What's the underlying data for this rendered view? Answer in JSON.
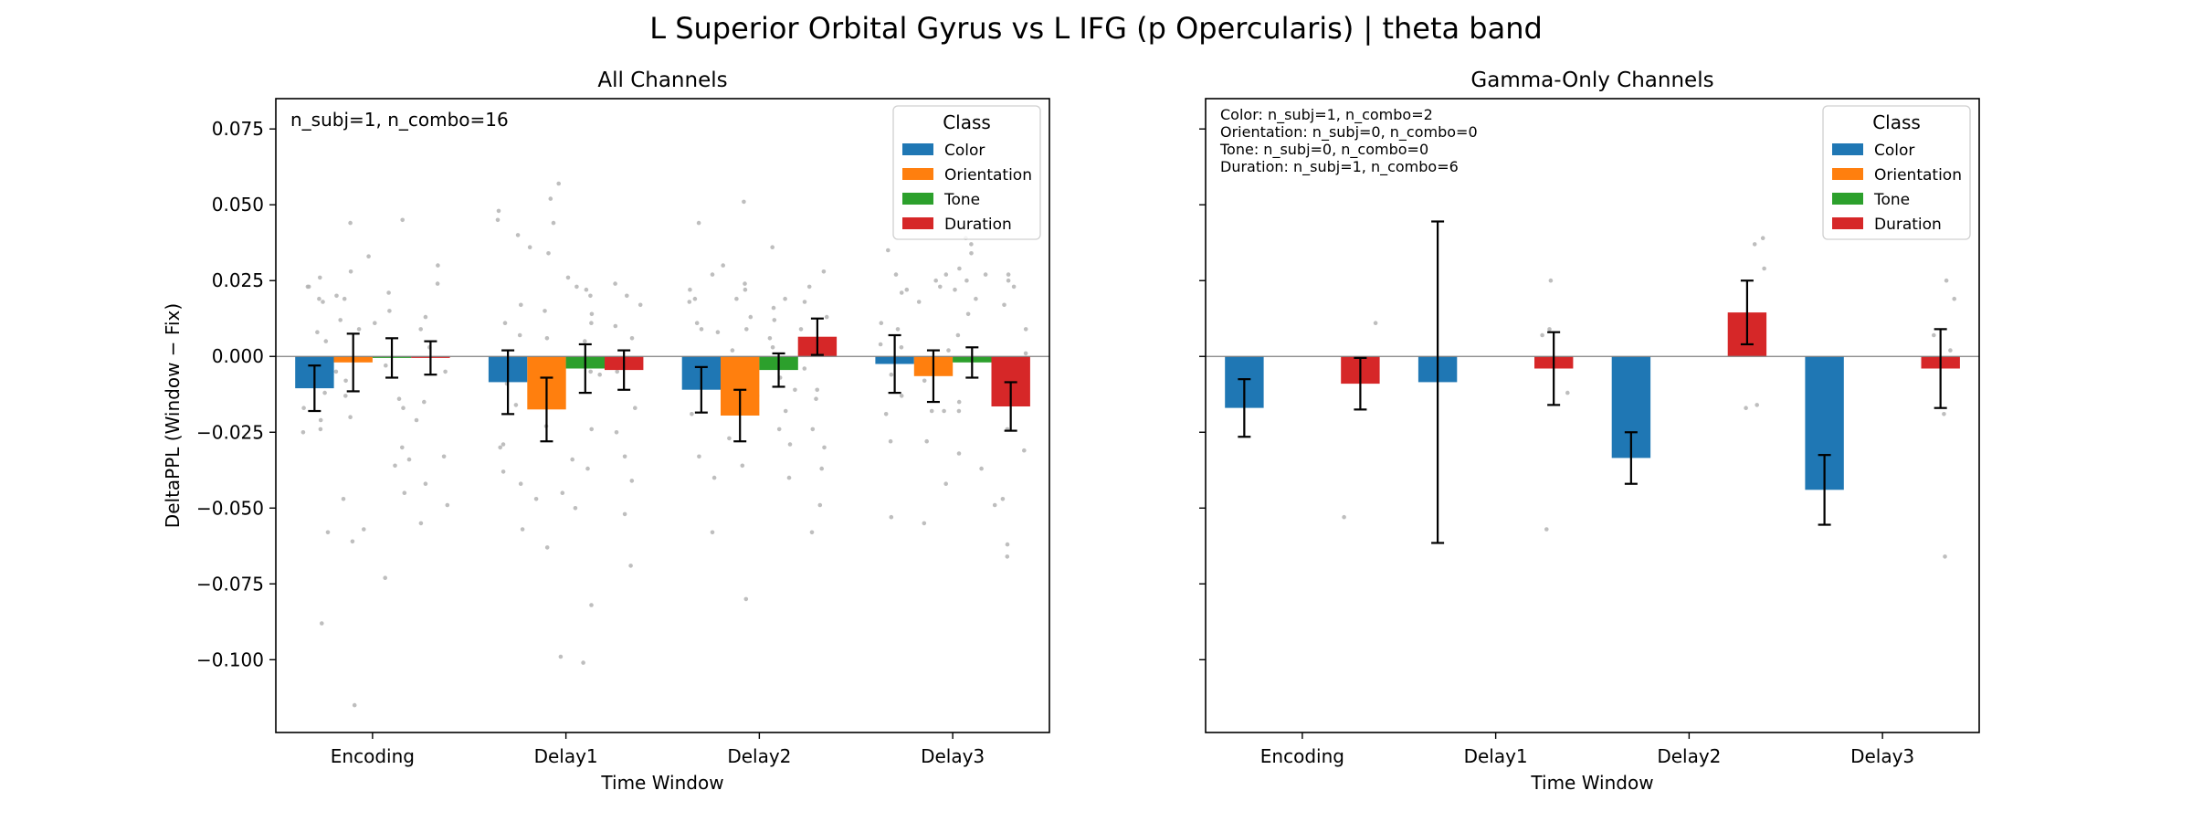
{
  "suptitle": "L Superior Orbital Gyrus vs L IFG (p Opercularis)  |  theta band",
  "colors": {
    "Color": "#1f77b4",
    "Orientation": "#ff7f0e",
    "Tone": "#2ca02c",
    "Duration": "#d62728",
    "scatter": "#b3b3b3",
    "errorbar": "#000000",
    "zero_line": "#808080"
  },
  "chart_data": [
    {
      "type": "bar",
      "title": "All Channels",
      "xlabel": "Time Window",
      "ylabel": "DeltaPPL (Window − Fix)",
      "ylim": [
        -0.124,
        0.085
      ],
      "yticks": [
        -0.1,
        -0.075,
        -0.05,
        -0.025,
        0.0,
        0.025,
        0.05,
        0.075
      ],
      "ytick_labels": [
        "−0.100",
        "−0.075",
        "−0.050",
        "−0.025",
        "0.000",
        "0.025",
        "0.050",
        "0.075"
      ],
      "show_ytick_labels": true,
      "categories": [
        "Encoding",
        "Delay1",
        "Delay2",
        "Delay3"
      ],
      "annotation": [
        "n_subj=1, n_combo=16"
      ],
      "legend": {
        "title": "Class",
        "placement": "top-right",
        "entries": [
          "Color",
          "Orientation",
          "Tone",
          "Duration"
        ]
      },
      "series": [
        {
          "name": "Color",
          "values": [
            -0.0105,
            -0.0085,
            -0.011,
            -0.0025
          ],
          "err": [
            0.0075,
            0.0105,
            0.0075,
            0.0095
          ]
        },
        {
          "name": "Orientation",
          "values": [
            -0.002,
            -0.0175,
            -0.0195,
            -0.0065
          ],
          "err": [
            0.0095,
            0.0105,
            0.0085,
            0.0085
          ]
        },
        {
          "name": "Tone",
          "values": [
            -0.0005,
            -0.004,
            -0.0045,
            -0.002
          ],
          "err": [
            0.0065,
            0.008,
            0.0055,
            0.005
          ]
        },
        {
          "name": "Duration",
          "values": [
            -0.0005,
            -0.0045,
            0.0065,
            -0.0165
          ],
          "err": [
            0.0055,
            0.0065,
            0.006,
            0.008
          ]
        }
      ],
      "points": [
        [
          [
            0.026,
            0.023,
            0.019,
            -0.006,
            -0.021,
            -0.024,
            -0.025,
            -0.058,
            -0.088,
            0.005,
            0.018,
            0.023,
            -0.012,
            -0.017,
            0.008
          ],
          [
            0.048,
            0.045,
            0.04,
            0.017,
            0.007,
            -0.001,
            -0.009,
            -0.016,
            -0.029,
            -0.03,
            -0.038,
            -0.057,
            -0.042,
            0.011
          ],
          [
            0.044,
            0.027,
            0.022,
            0.018,
            0.019,
            0.011,
            0.009,
            0.008,
            -0.001,
            -0.006,
            -0.019,
            -0.033,
            -0.04,
            -0.058
          ],
          [
            0.035,
            0.027,
            0.022,
            0.021,
            0.011,
            0.009,
            0.004,
            0.003,
            -0.006,
            -0.013,
            -0.019,
            -0.028,
            -0.053
          ]
        ],
        [
          [
            0.044,
            0.033,
            0.028,
            0.02,
            0.019,
            0.012,
            0.009,
            -0.005,
            -0.008,
            -0.013,
            -0.02,
            -0.047,
            -0.057,
            -0.061,
            -0.115
          ],
          [
            0.057,
            0.052,
            0.044,
            0.036,
            0.034,
            0.015,
            0.006,
            -0.002,
            -0.013,
            -0.023,
            -0.045,
            -0.047,
            -0.063,
            -0.099
          ],
          [
            0.051,
            0.03,
            0.024,
            0.022,
            0.019,
            0.013,
            0.009,
            0.002,
            -0.009,
            -0.013,
            -0.016,
            -0.027,
            -0.036,
            -0.08
          ],
          [
            0.027,
            0.025,
            0.023,
            0.018,
            0.002,
            -0.001,
            -0.008,
            -0.018,
            -0.018,
            -0.028,
            -0.042,
            -0.055
          ]
        ],
        [
          [
            0.045,
            0.021,
            0.015,
            0.011,
            -0.003,
            -0.014,
            -0.017,
            -0.03,
            -0.034,
            -0.036,
            -0.045,
            -0.073
          ],
          [
            0.026,
            0.023,
            0.022,
            0.02,
            0.014,
            0.011,
            0.005,
            -0.005,
            -0.006,
            -0.024,
            -0.034,
            -0.037,
            -0.05,
            -0.082,
            -0.101
          ],
          [
            0.036,
            0.019,
            0.016,
            0.012,
            0.006,
            0.003,
            -0.002,
            -0.007,
            -0.011,
            -0.018,
            -0.024,
            -0.029,
            -0.04
          ],
          [
            0.039,
            0.037,
            0.034,
            0.029,
            0.027,
            0.025,
            0.022,
            0.019,
            0.014,
            0.007,
            -0.015,
            -0.018,
            -0.032,
            -0.037
          ]
        ],
        [
          [
            0.03,
            0.024,
            0.013,
            0.009,
            0.003,
            -0.005,
            -0.015,
            -0.021,
            -0.033,
            -0.042,
            -0.049,
            -0.055
          ],
          [
            0.024,
            0.02,
            0.017,
            0.01,
            0.006,
            -0.005,
            -0.017,
            -0.025,
            -0.033,
            -0.041,
            -0.052,
            -0.069
          ],
          [
            0.028,
            0.023,
            0.018,
            0.013,
            0.009,
            -0.004,
            -0.011,
            -0.014,
            -0.024,
            -0.03,
            -0.037,
            -0.049,
            -0.058
          ],
          [
            0.027,
            0.025,
            0.023,
            0.017,
            0.009,
            0.001,
            -0.013,
            -0.024,
            -0.031,
            -0.047,
            -0.049,
            -0.062,
            -0.066
          ]
        ]
      ]
    },
    {
      "type": "bar",
      "title": "Gamma-Only Channels",
      "xlabel": "Time Window",
      "ylabel": "",
      "ylim": [
        -0.124,
        0.085
      ],
      "yticks": [
        -0.1,
        -0.075,
        -0.05,
        -0.025,
        0.0,
        0.025,
        0.05,
        0.075
      ],
      "ytick_labels": [],
      "show_ytick_labels": false,
      "categories": [
        "Encoding",
        "Delay1",
        "Delay2",
        "Delay3"
      ],
      "annotation": [
        "Color: n_subj=1, n_combo=2",
        "Orientation: n_subj=0, n_combo=0",
        "Tone: n_subj=0, n_combo=0",
        "Duration: n_subj=1, n_combo=6"
      ],
      "legend": {
        "title": "Class",
        "placement": "top-right",
        "entries": [
          "Color",
          "Orientation",
          "Tone",
          "Duration"
        ]
      },
      "series": [
        {
          "name": "Color",
          "values": [
            -0.017,
            -0.0085,
            -0.0335,
            -0.044
          ],
          "err": [
            0.0095,
            0.053,
            0.0085,
            0.0115
          ]
        },
        {
          "name": "Orientation",
          "values": [
            null,
            null,
            null,
            null
          ],
          "err": [
            null,
            null,
            null,
            null
          ]
        },
        {
          "name": "Tone",
          "values": [
            null,
            null,
            null,
            null
          ],
          "err": [
            null,
            null,
            null,
            null
          ]
        },
        {
          "name": "Duration",
          "values": [
            -0.009,
            -0.004,
            0.0145,
            -0.004
          ],
          "err": [
            0.0085,
            0.012,
            0.0105,
            0.013
          ]
        }
      ],
      "points": [
        [
          [],
          [],
          [],
          []
        ],
        [
          [],
          [],
          [],
          []
        ],
        [
          [],
          [],
          [],
          []
        ],
        [
          [
            0.011,
            -0.001,
            -0.053
          ],
          [
            0.025,
            0.009,
            0.007,
            -0.012,
            -0.057
          ],
          [
            0.039,
            0.037,
            0.029,
            -0.016,
            -0.017
          ],
          [
            0.025,
            0.019,
            0.007,
            0.002,
            -0.019,
            -0.066
          ]
        ]
      ]
    }
  ]
}
